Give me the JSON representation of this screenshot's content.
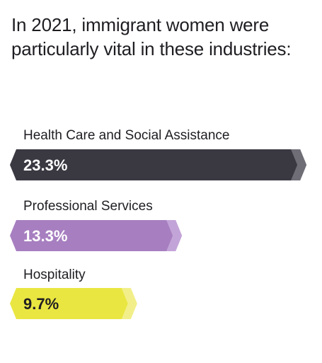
{
  "title": "In 2021, immigrant women were particularly vital in these industries:",
  "chart_data": {
    "type": "bar",
    "orientation": "horizontal",
    "categories": [
      "Health Care and Social Assistance",
      "Professional Services",
      "Hospitality"
    ],
    "values": [
      23.3,
      13.3,
      9.7
    ],
    "value_labels": [
      "23.3%",
      "13.3%",
      "9.7%"
    ],
    "colors": [
      "#3a3841",
      "#a77fc0",
      "#e9e641"
    ],
    "tip_colors": [
      "#6f6d76",
      "#c3a4d8",
      "#f2ef8a"
    ],
    "label_colors": [
      "#ffffff",
      "#ffffff",
      "#1f1d22"
    ],
    "unit": "%",
    "grid": false,
    "legend": "none"
  }
}
